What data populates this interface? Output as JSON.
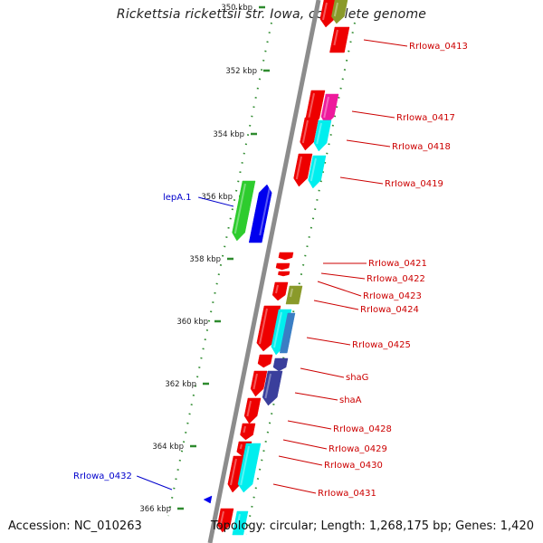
{
  "title": "Rickettsia rickettsii str. Iowa, complete genome",
  "footer": {
    "accession": "Accession: NC_010263",
    "summary": "Topology: circular; Length: 1,268,175 bp; Genes: 1,420"
  },
  "ticks": [
    "350 kbp",
    "352 kbp",
    "354 kbp",
    "356 kbp",
    "358 kbp",
    "360 kbp",
    "362 kbp",
    "364 kbp",
    "366 kbp"
  ],
  "colors": {
    "backbone": "#8c8c8c",
    "tick_mark": "#2e8b2e",
    "gene_red": "#ee0000",
    "gene_cyan": "#00eeee",
    "gene_green": "#2ecc2e",
    "gene_blue": "#0000ee",
    "gene_magenta": "#ee1a9c",
    "gene_olive": "#8a9a2a",
    "gene_steel": "#3a7ec4",
    "gene_navy": "#3a3f9c",
    "label_red": "#cc0000",
    "label_blue": "#0000cc"
  },
  "gene_labels": [
    {
      "text": "RrIowa_0413",
      "color": "red"
    },
    {
      "text": "RrIowa_0417",
      "color": "red"
    },
    {
      "text": "RrIowa_0418",
      "color": "red"
    },
    {
      "text": "RrIowa_0419",
      "color": "red"
    },
    {
      "text": "lepA.1",
      "color": "blue"
    },
    {
      "text": "RrIowa_0421",
      "color": "red"
    },
    {
      "text": "RrIowa_0422",
      "color": "red"
    },
    {
      "text": "RrIowa_0423",
      "color": "red"
    },
    {
      "text": "RrIowa_0424",
      "color": "red"
    },
    {
      "text": "RrIowa_0425",
      "color": "red"
    },
    {
      "text": "shaG",
      "color": "red"
    },
    {
      "text": "shaA",
      "color": "red"
    },
    {
      "text": "RrIowa_0428",
      "color": "red"
    },
    {
      "text": "RrIowa_0429",
      "color": "red"
    },
    {
      "text": "RrIowa_0430",
      "color": "red"
    },
    {
      "text": "RrIowa_0431",
      "color": "red"
    },
    {
      "text": "RrIowa_0432",
      "color": "blue"
    }
  ]
}
